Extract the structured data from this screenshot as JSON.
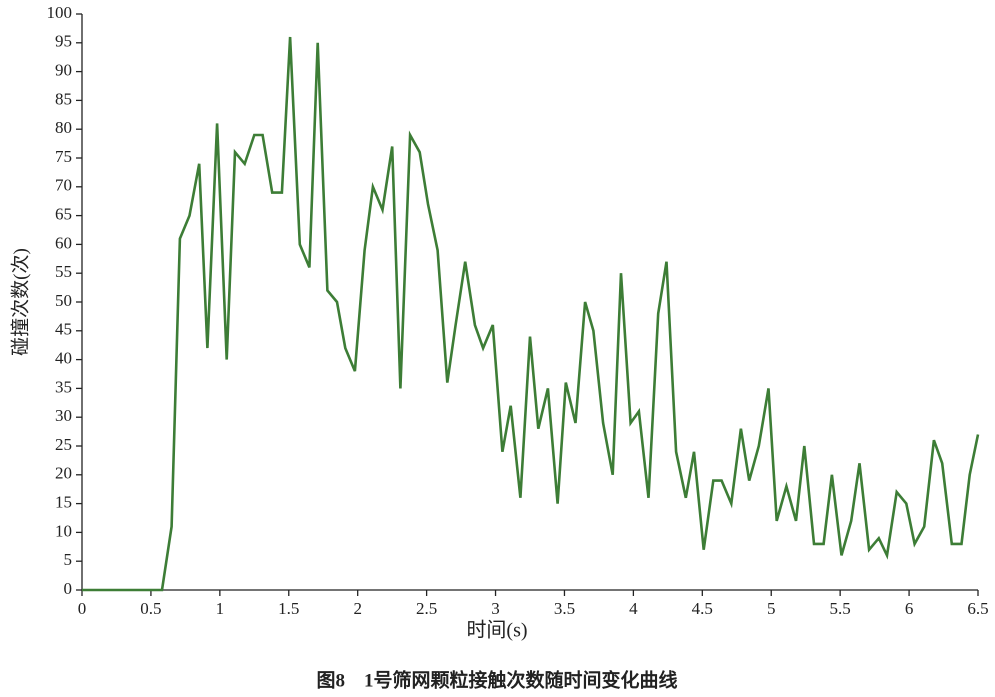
{
  "chart_data": {
    "type": "line",
    "caption": "图8　1号筛网颗粒接触次数随时间变化曲线",
    "x_label": "时间(s)",
    "y_label": "碰撞次数(次)",
    "color": "#3d7d36",
    "grid": false,
    "xlim": [
      0,
      6.5
    ],
    "ylim": [
      0,
      100
    ],
    "xticks": [
      0,
      0.5,
      1,
      1.5,
      2,
      2.5,
      3,
      3.5,
      4,
      4.5,
      5,
      5.5,
      6,
      6.5
    ],
    "yticks": [
      0,
      5,
      10,
      15,
      20,
      25,
      30,
      35,
      40,
      45,
      50,
      55,
      60,
      65,
      70,
      75,
      80,
      85,
      90,
      95,
      100
    ],
    "x": [
      0,
      0.58,
      0.65,
      0.71,
      0.78,
      0.85,
      0.91,
      0.98,
      1.05,
      1.11,
      1.18,
      1.25,
      1.31,
      1.38,
      1.45,
      1.51,
      1.58,
      1.65,
      1.71,
      1.78,
      1.85,
      1.91,
      1.98,
      2.05,
      2.11,
      2.18,
      2.25,
      2.31,
      2.38,
      2.45,
      2.51,
      2.58,
      2.65,
      2.71,
      2.78,
      2.85,
      2.91,
      2.98,
      3.05,
      3.11,
      3.18,
      3.25,
      3.31,
      3.38,
      3.45,
      3.51,
      3.58,
      3.65,
      3.71,
      3.78,
      3.85,
      3.91,
      3.98,
      4.04,
      4.11,
      4.18,
      4.24,
      4.31,
      4.38,
      4.44,
      4.51,
      4.58,
      4.64,
      4.71,
      4.78,
      4.84,
      4.91,
      4.98,
      5.04,
      5.11,
      5.18,
      5.24,
      5.31,
      5.38,
      5.44,
      5.51,
      5.58,
      5.64,
      5.71,
      5.78,
      5.84,
      5.91,
      5.98,
      6.04,
      6.11,
      6.18,
      6.24,
      6.31,
      6.38,
      6.44,
      6.5
    ],
    "values": [
      0,
      0,
      11,
      61,
      65,
      74,
      42,
      81,
      40,
      76,
      74,
      79,
      79,
      69,
      69,
      96,
      60,
      56,
      95,
      52,
      50,
      42,
      38,
      59,
      70,
      66,
      77,
      35,
      79,
      76,
      67,
      59,
      36,
      46,
      57,
      46,
      42,
      46,
      24,
      32,
      16,
      44,
      28,
      35,
      15,
      36,
      29,
      50,
      45,
      29,
      20,
      55,
      29,
      31,
      16,
      48,
      57,
      24,
      16,
      24,
      7,
      19,
      19,
      15,
      28,
      19,
      25,
      35,
      12,
      18,
      12,
      25,
      8,
      8,
      20,
      6,
      12,
      22,
      7,
      9,
      6,
      17,
      15,
      8,
      11,
      26,
      22,
      8,
      8,
      20,
      27
    ]
  }
}
